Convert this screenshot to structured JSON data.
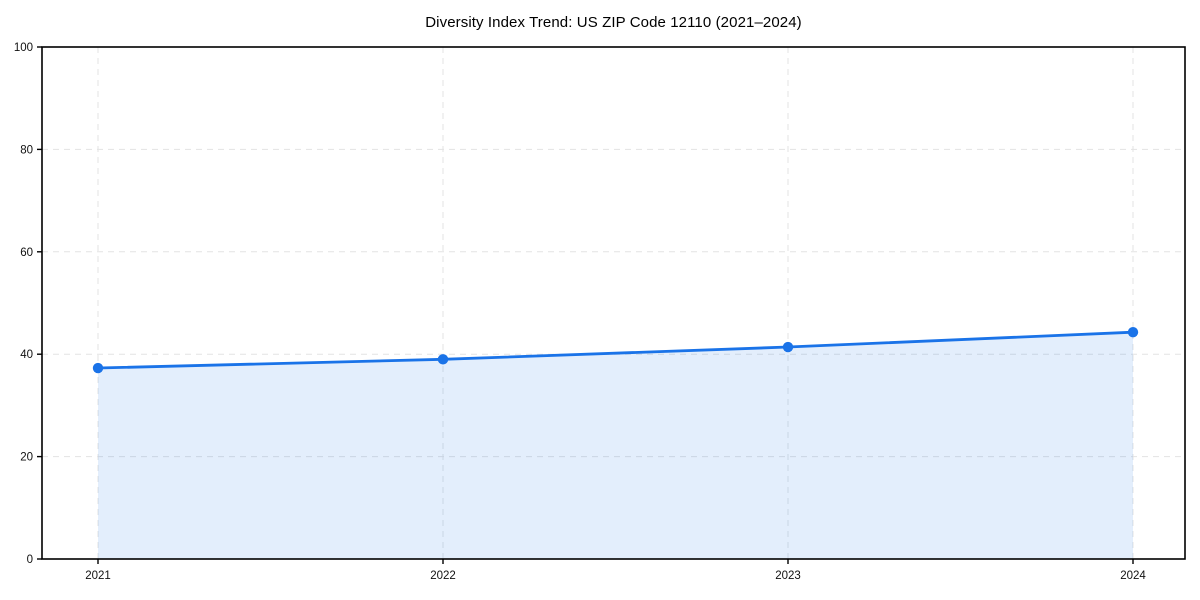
{
  "chart_data": {
    "type": "area",
    "title": "Diversity Index Trend: US ZIP Code 12110 (2021–2024)",
    "xlabel": "",
    "ylabel": "",
    "categories": [
      "2021",
      "2022",
      "2023",
      "2024"
    ],
    "series": [
      {
        "name": "Diversity Index",
        "values": [
          37.3,
          39.0,
          41.4,
          44.3
        ]
      }
    ],
    "values": [
      37.3,
      39.0,
      41.4,
      44.3
    ],
    "ylim": [
      0,
      100
    ],
    "yticks": [
      0,
      20,
      40,
      60,
      80,
      100
    ],
    "grid": "dashed-both-axes",
    "legend": "none",
    "colors": {
      "line": "#1a73e8",
      "marker": "#1a73e8",
      "fill": "rgba(26,115,232,0.12)",
      "grid": "#e3e3e3",
      "spine": "#000000",
      "tick_text": "#111111",
      "background": "#ffffff"
    }
  }
}
